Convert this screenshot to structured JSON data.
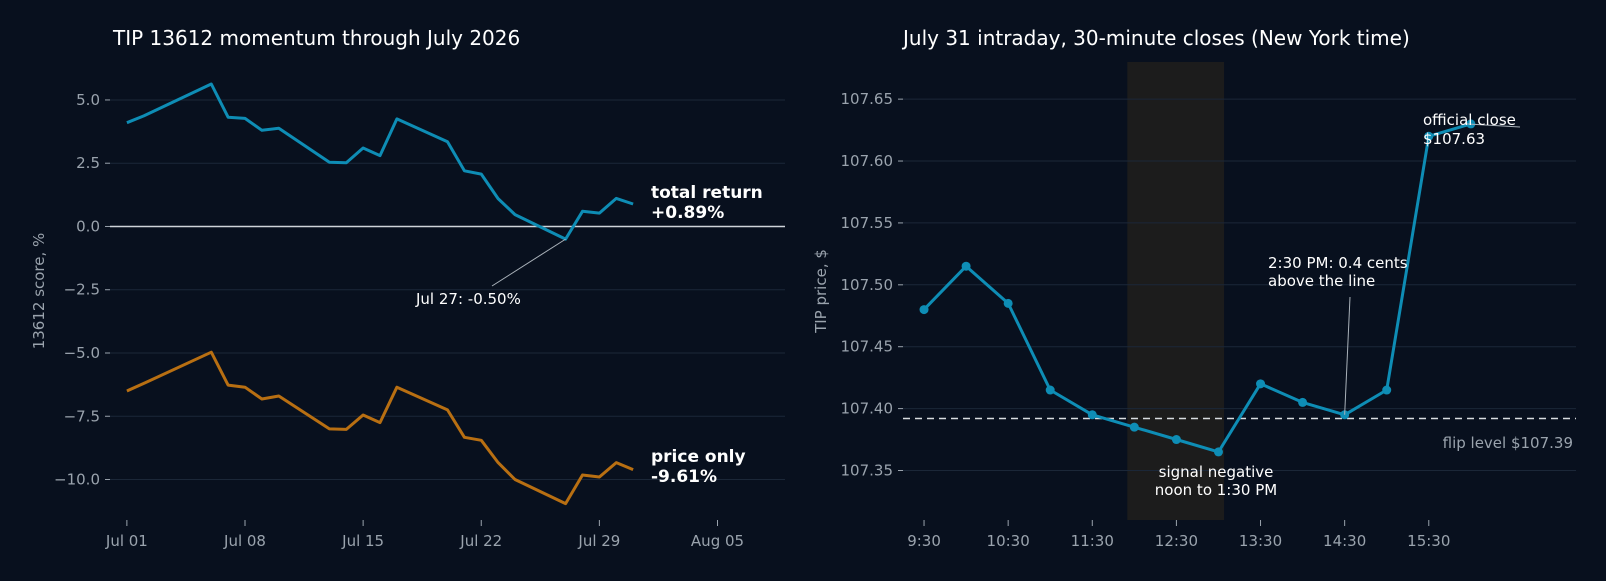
{
  "colors": {
    "background": "#08101e",
    "total_return": "#0e8db5",
    "price_only": "#b86f12",
    "intraday": "#0e8db5",
    "shade": "#1c1c1c",
    "zero_line": "#cfd4da",
    "flip_line": "#d8dce0"
  },
  "chart_data": [
    {
      "type": "line",
      "title": "TIP 13612 momentum through July 2026",
      "ylabel": "13612 score, %",
      "xlabel": "",
      "x_ticks": [
        "2026-07-01",
        "2026-07-08",
        "2026-07-15",
        "2026-07-22",
        "2026-07-29",
        "2026-08-05"
      ],
      "x_tick_labels": [
        "Jul 01",
        "Jul 08",
        "Jul 15",
        "Jul 22",
        "Jul 29",
        "Aug 05"
      ],
      "x_range": [
        "2026-06-30",
        "2026-08-09"
      ],
      "y_ticks": [
        5.0,
        2.5,
        0.0,
        -2.5,
        -5.0,
        -7.5,
        -10.0
      ],
      "y_tick_labels": [
        "5.0",
        "2.5",
        "0.0",
        "−2.5",
        "−5.0",
        "−7.5",
        "−10.0"
      ],
      "ylim": [
        -11.6,
        6.5
      ],
      "grid": true,
      "zero_line": 0,
      "x": [
        "2026-07-01",
        "2026-07-02",
        "2026-07-06",
        "2026-07-07",
        "2026-07-08",
        "2026-07-09",
        "2026-07-10",
        "2026-07-13",
        "2026-07-14",
        "2026-07-15",
        "2026-07-16",
        "2026-07-17",
        "2026-07-20",
        "2026-07-21",
        "2026-07-22",
        "2026-07-23",
        "2026-07-24",
        "2026-07-27",
        "2026-07-28",
        "2026-07-29",
        "2026-07-30",
        "2026-07-31"
      ],
      "series": [
        {
          "name": "total return",
          "end_label": "+0.89%",
          "values": [
            4.1,
            4.37,
            5.63,
            4.32,
            4.27,
            3.8,
            3.88,
            2.54,
            2.52,
            3.1,
            2.8,
            4.25,
            3.35,
            2.2,
            2.07,
            1.1,
            0.47,
            -0.5,
            0.6,
            0.53,
            1.11,
            0.89
          ]
        },
        {
          "name": "price only",
          "end_label": "-9.61%",
          "values": [
            -6.5,
            -6.2,
            -4.97,
            -6.27,
            -6.35,
            -6.82,
            -6.7,
            -8.0,
            -8.02,
            -7.45,
            -7.75,
            -6.35,
            -7.25,
            -8.33,
            -8.45,
            -9.33,
            -10.0,
            -10.95,
            -9.82,
            -9.9,
            -9.33,
            -9.61
          ]
        }
      ],
      "annotations": [
        {
          "text": "Jul 27: -0.50%",
          "x": "2026-07-27",
          "y": -0.5
        }
      ]
    },
    {
      "type": "line",
      "title": "July 31 intraday, 30-minute closes (New York time)",
      "ylabel": "TIP price, $",
      "xlabel": "",
      "x_ticks": [
        "9:30",
        "10:30",
        "11:30",
        "12:30",
        "13:30",
        "14:30",
        "15:30"
      ],
      "x_range": [
        "9:15",
        "17:15"
      ],
      "y_ticks": [
        107.65,
        107.6,
        107.55,
        107.5,
        107.45,
        107.4,
        107.35
      ],
      "y_tick_labels": [
        "107.65",
        "107.60",
        "107.55",
        "107.50",
        "107.45",
        "107.40",
        "107.35"
      ],
      "ylim": [
        107.31,
        107.68
      ],
      "grid": true,
      "x": [
        "9:30",
        "10:00",
        "10:30",
        "11:00",
        "11:30",
        "12:00",
        "12:30",
        "13:00",
        "13:30",
        "14:00",
        "14:30",
        "15:00",
        "15:30",
        "16:00"
      ],
      "series": [
        {
          "name": "",
          "values": [
            107.48,
            107.515,
            107.485,
            107.415,
            107.395,
            107.385,
            107.375,
            107.365,
            107.42,
            107.405,
            107.395,
            107.415,
            107.62,
            107.63
          ]
        }
      ],
      "flip_level": 107.392,
      "flip_label": "flip level $107.39",
      "shaded_region": {
        "from": "11:55",
        "to": "13:04",
        "label_line1": "signal negative",
        "label_line2": "noon to 1:30 PM"
      },
      "annotations": [
        {
          "line1": "2:30 PM: 0.4 cents",
          "line2": "above the line",
          "x": "14:30",
          "y": 107.395
        },
        {
          "line1": "official close",
          "line2": "$107.63",
          "x": "16:00",
          "y": 107.63
        }
      ]
    }
  ]
}
